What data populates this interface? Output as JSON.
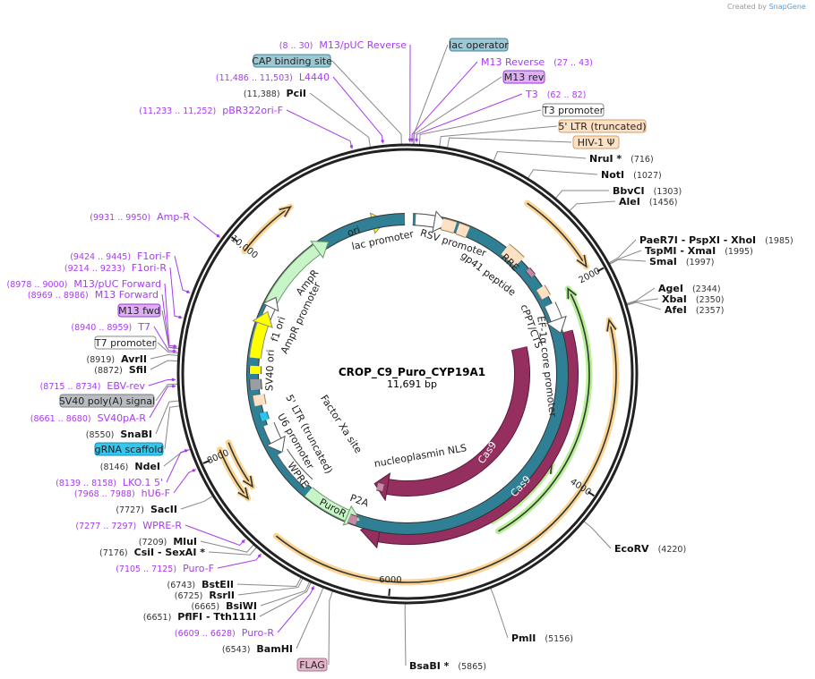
{
  "credit": {
    "created_by": "Created by",
    "brand": "SnapGene"
  },
  "plasmid": {
    "name": "CROP_C9_Puro_CYP19A1",
    "length": "11,691 bp"
  },
  "ticks": [
    "2000",
    "4000",
    "6000",
    "8000",
    "10,000"
  ],
  "labels": [
    {
      "type": "primer",
      "pos": "(8 .. 30)",
      "name": "M13/pUC Reverse"
    },
    {
      "type": "box",
      "name": "CAP binding site",
      "color": "#9cc7d3",
      "border": "#3f8797"
    },
    {
      "type": "primer",
      "pos": "(11,486 .. 11,503)",
      "name": "L4440"
    },
    {
      "type": "site",
      "pos": "(11,388)",
      "name": "PciI"
    },
    {
      "type": "primer",
      "pos": "(11,233 .. 11,252)",
      "name": "pBR322ori-F"
    },
    {
      "type": "primer",
      "pos": "(9931 .. 9950)",
      "name": "Amp-R"
    },
    {
      "type": "primer",
      "pos": "(9424 .. 9445)",
      "name": "F1ori-F"
    },
    {
      "type": "primer",
      "pos": "(9214 .. 9233)",
      "name": "F1ori-R"
    },
    {
      "type": "primer",
      "pos": "(8978 .. 9000)",
      "name": "M13/pUC Forward"
    },
    {
      "type": "primer",
      "pos": "(8969 .. 8986)",
      "name": "M13 Forward"
    },
    {
      "type": "box",
      "name": "M13 fwd",
      "color": "#ddb0f4",
      "border": "#9a36d6"
    },
    {
      "type": "primer",
      "pos": "(8940 .. 8959)",
      "name": "T7"
    },
    {
      "type": "box",
      "name": "T7 promoter",
      "color": "#ffffff",
      "border": "#888888"
    },
    {
      "type": "site",
      "pos": "(8919)",
      "name": "AvrII"
    },
    {
      "type": "site",
      "pos": "(8872)",
      "name": "SfiI"
    },
    {
      "type": "primer",
      "pos": "(8715 .. 8734)",
      "name": "EBV-rev"
    },
    {
      "type": "box",
      "name": "SV40 poly(A) signal",
      "color": "#b9bcc0",
      "border": "#7a7d80"
    },
    {
      "type": "primer",
      "pos": "(8661 .. 8680)",
      "name": "SV40pA-R"
    },
    {
      "type": "site",
      "pos": "(8550)",
      "name": "SnaBI"
    },
    {
      "type": "box",
      "name": "gRNA scaffold",
      "color": "#35c6ef",
      "border": "#1a8fb3"
    },
    {
      "type": "site",
      "pos": "(8146)",
      "name": "NdeI"
    },
    {
      "type": "primer",
      "pos": "(8139 .. 8158)",
      "name": "LKO.1 5'"
    },
    {
      "type": "primer",
      "pos": "(7968 .. 7988)",
      "name": "hU6-F"
    },
    {
      "type": "site",
      "pos": "(7727)",
      "name": "SacII"
    },
    {
      "type": "primer",
      "pos": "(7277 .. 7297)",
      "name": "WPRE-R"
    },
    {
      "type": "site",
      "pos": "(7209)",
      "name": "MluI"
    },
    {
      "type": "site",
      "pos": "(7176)",
      "name": "CsiI  - SexAI *"
    },
    {
      "type": "primer",
      "pos": "(7105 .. 7125)",
      "name": "Puro-F"
    },
    {
      "type": "site",
      "pos": "(6743)",
      "name": "BstEII"
    },
    {
      "type": "site",
      "pos": "(6725)",
      "name": "RsrII"
    },
    {
      "type": "site",
      "pos": "(6665)",
      "name": "BsiWI"
    },
    {
      "type": "site",
      "pos": "(6651)",
      "name": "PflFI  - Tth111I"
    },
    {
      "type": "primer",
      "pos": "(6609 .. 6628)",
      "name": "Puro-R"
    },
    {
      "type": "site",
      "pos": "(6543)",
      "name": "BamHI"
    },
    {
      "type": "box",
      "name": "FLAG",
      "color": "#e3b5cb",
      "border": "#a8708c"
    },
    {
      "type": "site",
      "pos": "(5865)",
      "name": "BsaBI *"
    },
    {
      "type": "site",
      "pos": "(5156)",
      "name": "PmlI"
    },
    {
      "type": "site",
      "pos": "(4220)",
      "name": "EcoRV"
    },
    {
      "type": "box",
      "name": "lac operator",
      "color": "#9cc7d3",
      "border": "#3f8797"
    },
    {
      "type": "primer",
      "pos": "(27 .. 43)",
      "name": "M13 Reverse"
    },
    {
      "type": "box",
      "name": "M13 rev",
      "color": "#ddb0f4",
      "border": "#9a36d6"
    },
    {
      "type": "primer",
      "pos": "(62 .. 82)",
      "name": "T3"
    },
    {
      "type": "box",
      "name": "T3 promoter",
      "color": "#ffffff",
      "border": "#888888"
    },
    {
      "type": "box",
      "name": "5' LTR (truncated)",
      "color": "#fde1c4",
      "border": "#cf9e6c"
    },
    {
      "type": "box",
      "name": "HIV-1 Ψ",
      "color": "#fde1c4",
      "border": "#cf9e6c"
    },
    {
      "type": "site",
      "pos": "(716)",
      "name": "NruI *"
    },
    {
      "type": "site",
      "pos": "(1027)",
      "name": "NotI"
    },
    {
      "type": "site",
      "pos": "(1303)",
      "name": "BbvCI"
    },
    {
      "type": "site",
      "pos": "(1456)",
      "name": "AleI"
    },
    {
      "type": "site",
      "pos": "(1985)",
      "name": "PaeR7I   - PspXI   - XhoI"
    },
    {
      "type": "site",
      "pos": "(1995)",
      "name": "TspMI   - XmaI"
    },
    {
      "type": "site",
      "pos": "(1997)",
      "name": "SmaI"
    },
    {
      "type": "site",
      "pos": "(2344)",
      "name": "AgeI"
    },
    {
      "type": "site",
      "pos": "(2350)",
      "name": "XbaI"
    },
    {
      "type": "site",
      "pos": "(2357)",
      "name": "AfeI"
    }
  ],
  "features": [
    {
      "name": "ori"
    },
    {
      "name": "lac promoter"
    },
    {
      "name": "RSV promoter"
    },
    {
      "name": "RRE"
    },
    {
      "name": "gp41 peptide"
    },
    {
      "name": "cPPT/CTS"
    },
    {
      "name": "EF-1α core promoter"
    },
    {
      "name": "AmpR"
    },
    {
      "name": "AmpR promoter"
    },
    {
      "name": "f1 ori"
    },
    {
      "name": "SV40 ori"
    },
    {
      "name": "5' LTR (truncated)"
    },
    {
      "name": "U6 promoter"
    },
    {
      "name": "WPRE"
    },
    {
      "name": "Factor Xa site"
    },
    {
      "name": "nucleoplasmin NLS"
    },
    {
      "name": "PuroR"
    },
    {
      "name": "P2A"
    },
    {
      "name": "Cas9"
    },
    {
      "name": "Cas9"
    }
  ],
  "colors": {
    "primer": "#a63cf0",
    "cas9": "#952f60",
    "orange": "#fbd594",
    "green": "#b6ef95",
    "yellow": "#ffff00",
    "peach": "#fde1c4"
  }
}
